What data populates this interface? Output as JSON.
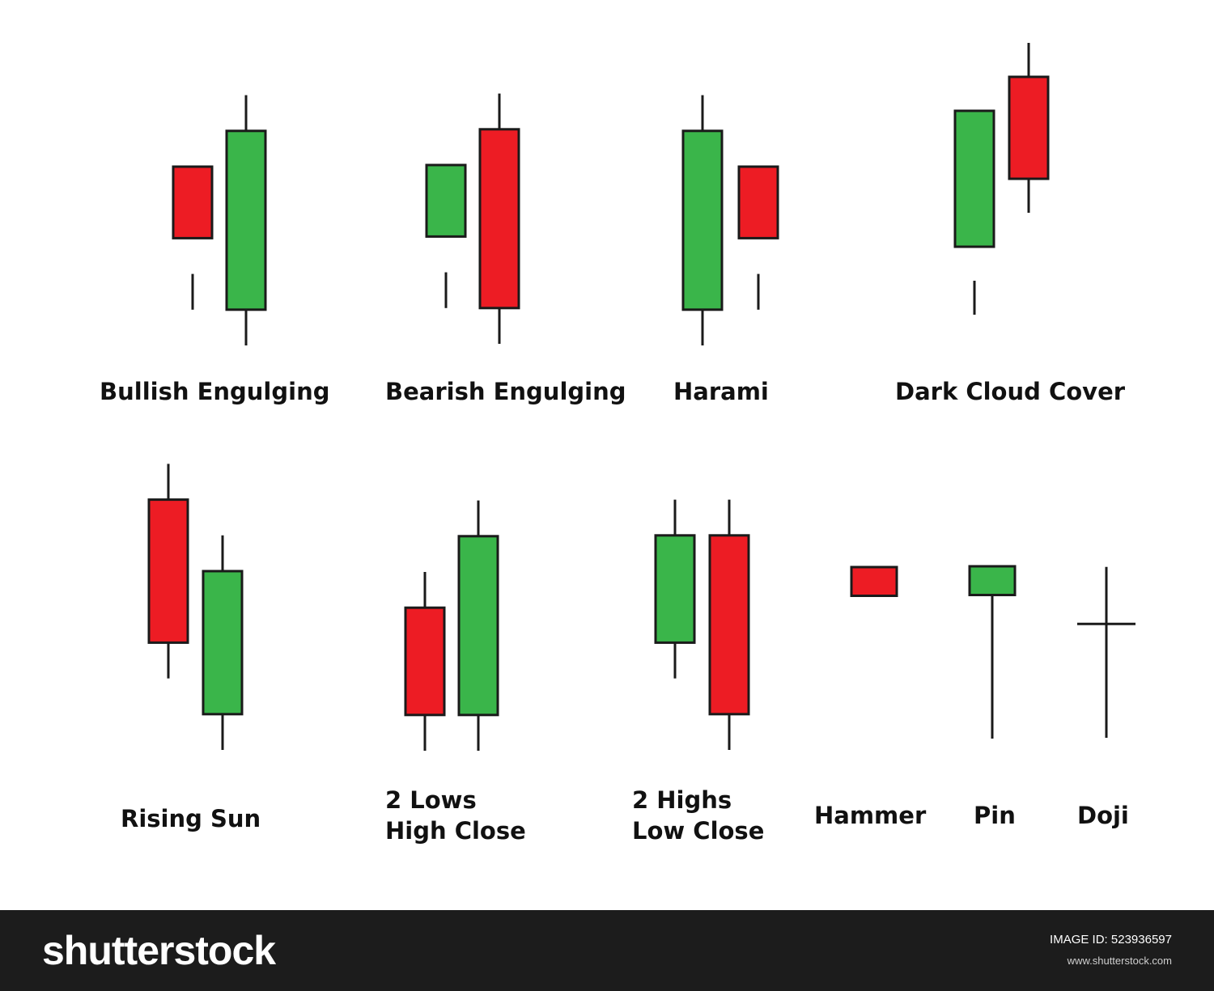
{
  "colors": {
    "bullish": "#3ab54a",
    "bearish": "#ed1c24",
    "outline": "#1a1a1a",
    "footer": "#1c1c1c"
  },
  "chart_data": {
    "type": "candlestick-patterns",
    "patterns": [
      {
        "name": "Bullish Engulging",
        "label": [
          "Bullish Engulging"
        ],
        "candles": [
          {
            "color": "bearish",
            "high": 2,
            "top": 5,
            "bottom": 3,
            "low": 1
          },
          {
            "color": "bullish",
            "high": 7,
            "top": 6,
            "bottom": 1,
            "low": 0
          }
        ]
      },
      {
        "name": "Bearish Engulging",
        "label": [
          "Bearish Engulging"
        ],
        "candles": [
          {
            "color": "bullish",
            "high": 2,
            "top": 5,
            "bottom": 3,
            "low": 1
          },
          {
            "color": "bearish",
            "high": 7,
            "top": 6,
            "bottom": 1,
            "low": 0
          }
        ]
      },
      {
        "name": "Harami",
        "label": [
          "Harami"
        ],
        "candles": [
          {
            "color": "bullish",
            "high": 7,
            "top": 6,
            "bottom": 1,
            "low": 0
          },
          {
            "color": "bearish",
            "high": 2,
            "top": 5,
            "bottom": 3,
            "low": 1
          }
        ]
      },
      {
        "name": "Dark Cloud Cover",
        "label": [
          "Dark Cloud Cover"
        ],
        "candles": [
          {
            "color": "bullish",
            "high": 1,
            "top": 6,
            "bottom": 2,
            "low": 0
          },
          {
            "color": "bearish",
            "high": 8,
            "top": 7,
            "bottom": 4,
            "low": 3
          }
        ]
      },
      {
        "name": "Rising Sun",
        "label": [
          "Rising Sun"
        ],
        "candles": [
          {
            "color": "bearish",
            "high": 8,
            "top": 7,
            "bottom": 3,
            "low": 2
          },
          {
            "color": "bullish",
            "high": 6,
            "top": 5,
            "bottom": 1,
            "low": 0
          }
        ]
      },
      {
        "name": "2 Lows High Close",
        "label": [
          "2 Lows",
          "High Close"
        ],
        "candles": [
          {
            "color": "bearish",
            "high": 5,
            "top": 4,
            "bottom": 1,
            "low": 0
          },
          {
            "color": "bullish",
            "high": 7,
            "top": 6,
            "bottom": 1,
            "low": 0
          }
        ]
      },
      {
        "name": "2 Highs Low Close",
        "label": [
          "2 Highs",
          "Low Close"
        ],
        "candles": [
          {
            "color": "bullish",
            "high": 7,
            "top": 6,
            "bottom": 3,
            "low": 2
          },
          {
            "color": "bearish",
            "high": 7,
            "top": 6,
            "bottom": 1,
            "low": 0
          }
        ]
      },
      {
        "name": "Hammer",
        "label": [
          "Hammer"
        ],
        "candles": [
          {
            "color": "bearish",
            "high": 0,
            "top": 6,
            "bottom": 5,
            "low": 0
          }
        ]
      },
      {
        "name": "Pin",
        "label": [
          "Pin"
        ],
        "candles": [
          {
            "color": "bullish",
            "high": 6,
            "top": 6,
            "bottom": 5,
            "low": 0
          }
        ]
      },
      {
        "name": "Doji",
        "label": [
          "Doji"
        ],
        "candles": [
          {
            "color": "doji",
            "high": 6,
            "top": 4,
            "bottom": 4,
            "low": 0
          }
        ]
      }
    ]
  },
  "footer": {
    "logo": "shutterstock",
    "image_id_label": "IMAGE ID:",
    "image_id": "523936597",
    "website": "www.shutterstock.com"
  }
}
